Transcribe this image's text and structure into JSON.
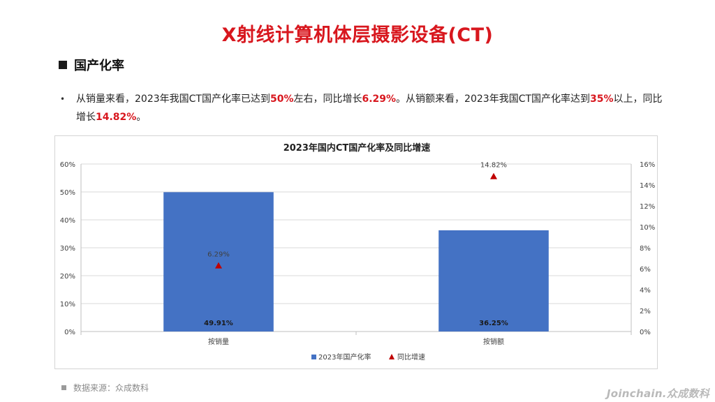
{
  "header": {
    "title": "X射线计算机体层摄影设备(CT)"
  },
  "section": {
    "heading": "国产化率"
  },
  "summary": {
    "seg1": "从销量来看，2023年我国CT国产化率已达到",
    "hl1": "50%",
    "seg2": "左右，同比增长",
    "hl2": "6.29%",
    "seg3": "。从销额来看，2023年我国CT国产化率达到",
    "hl3": "35%",
    "seg4": "以上，同比增长",
    "hl4": "14.82%",
    "seg5": "。"
  },
  "chart_data": {
    "type": "bar",
    "title": "2023年国内CT国产化率及同比增速",
    "categories": [
      "按销量",
      "按销额"
    ],
    "series": [
      {
        "name": "2023年国产化率",
        "type": "bar",
        "axis": "left",
        "values": [
          49.91,
          36.25
        ],
        "labels": [
          "49.91%",
          "36.25%"
        ],
        "color": "#4472c4"
      },
      {
        "name": "同比增速",
        "type": "marker",
        "marker": "triangle",
        "axis": "right",
        "values": [
          6.29,
          14.82
        ],
        "labels": [
          "6.29%",
          "14.82%"
        ],
        "color": "#c00000"
      }
    ],
    "y_left": {
      "min": 0,
      "max": 60,
      "step": 10,
      "ticks": [
        "0%",
        "10%",
        "20%",
        "30%",
        "40%",
        "50%",
        "60%"
      ]
    },
    "y_right": {
      "min": 0,
      "max": 16,
      "step": 2,
      "ticks": [
        "0%",
        "2%",
        "4%",
        "6%",
        "8%",
        "10%",
        "12%",
        "14%",
        "16%"
      ]
    },
    "grid": true,
    "legend_position": "bottom"
  },
  "footer": {
    "source": "数据来源：众成数科",
    "brand": "Joinchain.众成数科"
  }
}
